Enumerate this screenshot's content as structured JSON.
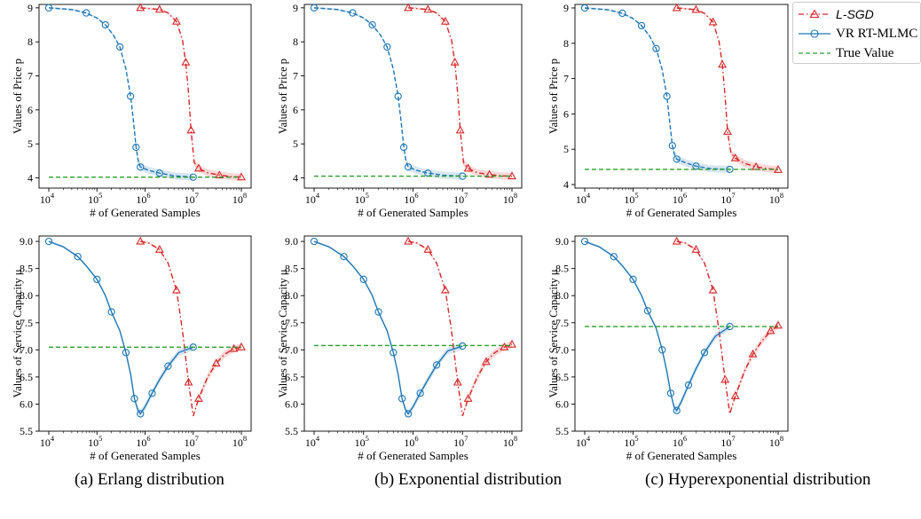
{
  "legend": {
    "lsgd": "L-SGD",
    "vr": "VR RT-MLMC",
    "true": "True Value"
  },
  "colors": {
    "lsgd": "#d62728",
    "vr": "#1f77b4",
    "true": "#2ca02c"
  },
  "captions": [
    "(a)  Erlang distribution",
    "(b)  Exponential distribution",
    "(c)  Hyperexponential distribution"
  ],
  "axis_titles": {
    "x": "# of Generated Samples",
    "price": "Values of Price p",
    "mu": "Values of Service Capacity μ"
  },
  "chart_data": [
    {
      "type": "line",
      "panel": "a-price",
      "xscale": "log",
      "xlim": [
        10000.0,
        100000000.0
      ],
      "ylim": [
        3.7,
        9.1
      ],
      "yticks": [
        "4",
        "5",
        "6",
        "7",
        "8",
        "9"
      ],
      "xticks": [
        "10^4",
        "10^5",
        "10^6",
        "10^7",
        "10^8"
      ],
      "series": [
        {
          "name": "L-SGD",
          "x": [
            800000.0,
            1200000.0,
            2000000.0,
            3000000.0,
            4500000.0,
            6000000.0,
            7000000.0,
            8000000.0,
            9000000.0,
            10500000.0,
            13000000.0,
            20000000.0,
            35000000.0,
            60000000.0,
            100000000.0
          ],
          "y": [
            9.0,
            8.98,
            8.95,
            8.85,
            8.6,
            8.05,
            7.4,
            6.5,
            5.4,
            4.45,
            4.28,
            4.15,
            4.08,
            4.04,
            4.02
          ]
        },
        {
          "name": "VR RT-MLMC",
          "x": [
            10000.0,
            30000.0,
            60000.0,
            100000.0,
            150000.0,
            220000.0,
            300000.0,
            400000.0,
            500000.0,
            580000.0,
            650000.0,
            720000.0,
            800000.0,
            1200000.0,
            2000000.0,
            4000000.0,
            10000000.0
          ],
          "y": [
            9.0,
            8.95,
            8.85,
            8.7,
            8.5,
            8.2,
            7.85,
            7.2,
            6.4,
            5.6,
            4.9,
            4.5,
            4.32,
            4.22,
            4.14,
            4.06,
            4.02
          ]
        },
        {
          "name": "True Value",
          "x": [
            10000.0,
            100000000.0
          ],
          "y": [
            4.02,
            4.02
          ]
        }
      ]
    },
    {
      "type": "line",
      "panel": "b-price",
      "xscale": "log",
      "xlim": [
        10000.0,
        100000000.0
      ],
      "ylim": [
        3.7,
        9.1
      ],
      "yticks": [
        "4",
        "5",
        "6",
        "7",
        "8",
        "9"
      ],
      "xticks": [
        "10^4",
        "10^5",
        "10^6",
        "10^7",
        "10^8"
      ],
      "series": [
        {
          "name": "L-SGD",
          "x": [
            800000.0,
            1200000.0,
            2000000.0,
            3000000.0,
            4500000.0,
            6000000.0,
            7000000.0,
            8000000.0,
            9000000.0,
            10500000.0,
            13000000.0,
            20000000.0,
            35000000.0,
            60000000.0,
            100000000.0
          ],
          "y": [
            9.0,
            8.98,
            8.95,
            8.85,
            8.6,
            8.05,
            7.4,
            6.5,
            5.4,
            4.45,
            4.28,
            4.15,
            4.1,
            4.06,
            4.05
          ]
        },
        {
          "name": "VR RT-MLMC",
          "x": [
            10000.0,
            30000.0,
            60000.0,
            100000.0,
            150000.0,
            220000.0,
            300000.0,
            400000.0,
            500000.0,
            580000.0,
            650000.0,
            720000.0,
            800000.0,
            1200000.0,
            2000000.0,
            4000000.0,
            10000000.0
          ],
          "y": [
            9.0,
            8.95,
            8.85,
            8.7,
            8.5,
            8.2,
            7.85,
            7.2,
            6.4,
            5.6,
            4.9,
            4.5,
            4.32,
            4.22,
            4.14,
            4.08,
            4.05
          ]
        },
        {
          "name": "True Value",
          "x": [
            10000.0,
            100000000.0
          ],
          "y": [
            4.05,
            4.05
          ]
        }
      ]
    },
    {
      "type": "line",
      "panel": "c-price",
      "xscale": "log",
      "xlim": [
        10000.0,
        100000000.0
      ],
      "ylim": [
        3.9,
        9.1
      ],
      "yticks": [
        "4",
        "5",
        "6",
        "7",
        "8",
        "9"
      ],
      "xticks": [
        "10^4",
        "10^5",
        "10^6",
        "10^7",
        "10^8"
      ],
      "series": [
        {
          "name": "L-SGD",
          "x": [
            800000.0,
            1200000.0,
            2000000.0,
            3000000.0,
            4500000.0,
            6000000.0,
            7000000.0,
            8000000.0,
            9000000.0,
            10500000.0,
            13000000.0,
            20000000.0,
            35000000.0,
            60000000.0,
            100000000.0
          ],
          "y": [
            9.0,
            8.98,
            8.95,
            8.85,
            8.6,
            8.05,
            7.4,
            6.5,
            5.5,
            4.9,
            4.75,
            4.6,
            4.5,
            4.45,
            4.42
          ]
        },
        {
          "name": "VR RT-MLMC",
          "x": [
            10000.0,
            30000.0,
            60000.0,
            100000.0,
            150000.0,
            220000.0,
            300000.0,
            400000.0,
            500000.0,
            580000.0,
            650000.0,
            720000.0,
            800000.0,
            1200000.0,
            2000000.0,
            4000000.0,
            10000000.0
          ],
          "y": [
            9.0,
            8.95,
            8.85,
            8.7,
            8.5,
            8.2,
            7.85,
            7.25,
            6.5,
            5.7,
            5.1,
            4.85,
            4.72,
            4.62,
            4.52,
            4.45,
            4.43
          ]
        },
        {
          "name": "True Value",
          "x": [
            10000.0,
            100000000.0
          ],
          "y": [
            4.43,
            4.43
          ]
        }
      ]
    },
    {
      "type": "line",
      "panel": "a-mu",
      "xscale": "log",
      "xlim": [
        10000.0,
        100000000.0
      ],
      "ylim": [
        5.5,
        9.1
      ],
      "yticks": [
        "5.5",
        "6.0",
        "6.5",
        "7.0",
        "7.5",
        "8.0",
        "8.5",
        "9.0"
      ],
      "xticks": [
        "10^4",
        "10^5",
        "10^6",
        "10^7",
        "10^8"
      ],
      "series": [
        {
          "name": "L-SGD",
          "x": [
            800000.0,
            1200000.0,
            2000000.0,
            3000000.0,
            4500000.0,
            6000000.0,
            8000000.0,
            10000000.0,
            13000000.0,
            20000000.0,
            30000000.0,
            45000000.0,
            70000000.0,
            100000000.0
          ],
          "y": [
            9.0,
            8.97,
            8.85,
            8.6,
            8.1,
            7.35,
            6.4,
            5.78,
            6.1,
            6.5,
            6.75,
            6.92,
            7.02,
            7.05
          ]
        },
        {
          "name": "VR RT-MLMC",
          "x": [
            10000.0,
            20000.0,
            40000.0,
            60000.0,
            100000.0,
            150000.0,
            200000.0,
            300000.0,
            400000.0,
            500000.0,
            600000.0,
            700000.0,
            800000.0,
            1000000.0,
            1400000.0,
            2000000.0,
            3000000.0,
            5000000.0,
            10000000.0
          ],
          "y": [
            9.0,
            8.9,
            8.72,
            8.55,
            8.3,
            8.0,
            7.7,
            7.35,
            6.95,
            6.55,
            6.1,
            5.9,
            5.82,
            5.95,
            6.2,
            6.45,
            6.7,
            6.95,
            7.05
          ]
        },
        {
          "name": "True Value",
          "x": [
            10000.0,
            100000000.0
          ],
          "y": [
            7.05,
            7.05
          ]
        }
      ]
    },
    {
      "type": "line",
      "panel": "b-mu",
      "xscale": "log",
      "xlim": [
        10000.0,
        100000000.0
      ],
      "ylim": [
        5.5,
        9.1
      ],
      "yticks": [
        "5.5",
        "6.0",
        "6.5",
        "7.0",
        "7.5",
        "8.0",
        "8.5",
        "9.0"
      ],
      "xticks": [
        "10^4",
        "10^5",
        "10^6",
        "10^7",
        "10^8"
      ],
      "series": [
        {
          "name": "L-SGD",
          "x": [
            800000.0,
            1200000.0,
            2000000.0,
            3000000.0,
            4500000.0,
            6000000.0,
            8000000.0,
            10000000.0,
            13000000.0,
            20000000.0,
            30000000.0,
            45000000.0,
            70000000.0,
            100000000.0
          ],
          "y": [
            9.0,
            8.97,
            8.85,
            8.6,
            8.1,
            7.35,
            6.4,
            5.78,
            6.1,
            6.5,
            6.78,
            6.95,
            7.05,
            7.1
          ]
        },
        {
          "name": "VR RT-MLMC",
          "x": [
            10000.0,
            20000.0,
            40000.0,
            60000.0,
            100000.0,
            150000.0,
            200000.0,
            300000.0,
            400000.0,
            500000.0,
            600000.0,
            700000.0,
            800000.0,
            1000000.0,
            1400000.0,
            2000000.0,
            3000000.0,
            5000000.0,
            10000000.0
          ],
          "y": [
            9.0,
            8.9,
            8.72,
            8.55,
            8.3,
            8.0,
            7.7,
            7.35,
            6.95,
            6.55,
            6.1,
            5.9,
            5.82,
            5.95,
            6.2,
            6.45,
            6.72,
            6.98,
            7.07
          ]
        },
        {
          "name": "True Value",
          "x": [
            10000.0,
            100000000.0
          ],
          "y": [
            7.08,
            7.08
          ]
        }
      ]
    },
    {
      "type": "line",
      "panel": "c-mu",
      "xscale": "log",
      "xlim": [
        10000.0,
        100000000.0
      ],
      "ylim": [
        5.5,
        9.1
      ],
      "yticks": [
        "5.5",
        "6.0",
        "6.5",
        "7.0",
        "7.5",
        "8.0",
        "8.5",
        "9.0"
      ],
      "xticks": [
        "10^4",
        "10^5",
        "10^6",
        "10^7",
        "10^8"
      ],
      "series": [
        {
          "name": "L-SGD",
          "x": [
            800000.0,
            1200000.0,
            2000000.0,
            3000000.0,
            4500000.0,
            6000000.0,
            8000000.0,
            10000000.0,
            13000000.0,
            20000000.0,
            30000000.0,
            45000000.0,
            70000000.0,
            100000000.0
          ],
          "y": [
            9.0,
            8.97,
            8.85,
            8.6,
            8.1,
            7.35,
            6.45,
            5.82,
            6.15,
            6.6,
            6.92,
            7.15,
            7.35,
            7.45
          ]
        },
        {
          "name": "VR RT-MLMC",
          "x": [
            10000.0,
            20000.0,
            40000.0,
            60000.0,
            100000.0,
            150000.0,
            200000.0,
            300000.0,
            400000.0,
            500000.0,
            600000.0,
            700000.0,
            800000.0,
            1000000.0,
            1400000.0,
            2000000.0,
            3000000.0,
            5000000.0,
            10000000.0
          ],
          "y": [
            9.0,
            8.9,
            8.72,
            8.55,
            8.3,
            8.0,
            7.72,
            7.4,
            7.0,
            6.6,
            6.2,
            5.95,
            5.88,
            6.05,
            6.35,
            6.65,
            6.95,
            7.25,
            7.43
          ]
        },
        {
          "name": "True Value",
          "x": [
            10000.0,
            100000000.0
          ],
          "y": [
            7.43,
            7.43
          ]
        }
      ]
    }
  ]
}
